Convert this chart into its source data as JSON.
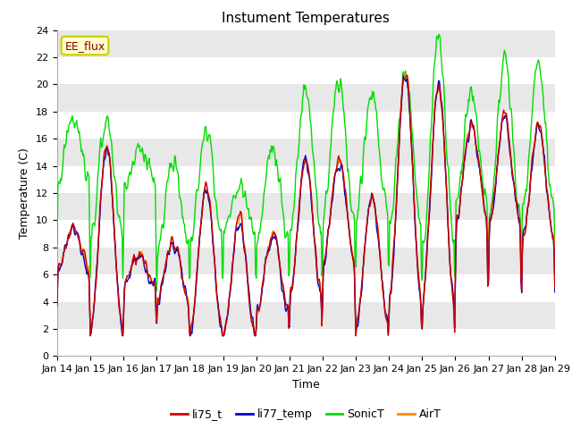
{
  "title": "Instument Temperatures",
  "xlabel": "Time",
  "ylabel": "Temperature (C)",
  "ylim": [
    0,
    24
  ],
  "annotation": "EE_flux",
  "fig_bg": "#ffffff",
  "plot_bg": "#e8e8e8",
  "band_light": "#f0f0f0",
  "band_dark": "#e0e0e0",
  "series": {
    "li75_t": {
      "color": "#cc0000",
      "label": "li75_t"
    },
    "li77_temp": {
      "color": "#0000cc",
      "label": "li77_temp"
    },
    "SonicT": {
      "color": "#00dd00",
      "label": "SonicT"
    },
    "AirT": {
      "color": "#ff8800",
      "label": "AirT"
    }
  },
  "xtick_labels": [
    "Jan 14",
    "Jan 15",
    "Jan 16",
    "Jan 17",
    "Jan 18",
    "Jan 19",
    "Jan 20",
    "Jan 21",
    "Jan 22",
    "Jan 23",
    "Jan 24",
    "Jan 25",
    "Jan 26",
    "Jan 27",
    "Jan 28",
    "Jan 29"
  ],
  "yticks": [
    0,
    2,
    4,
    6,
    8,
    10,
    12,
    14,
    16,
    18,
    20,
    22,
    24
  ],
  "n_points": 721,
  "title_fontsize": 11,
  "label_fontsize": 9,
  "tick_fontsize": 8,
  "legend_fontsize": 9,
  "line_width": 1.0
}
